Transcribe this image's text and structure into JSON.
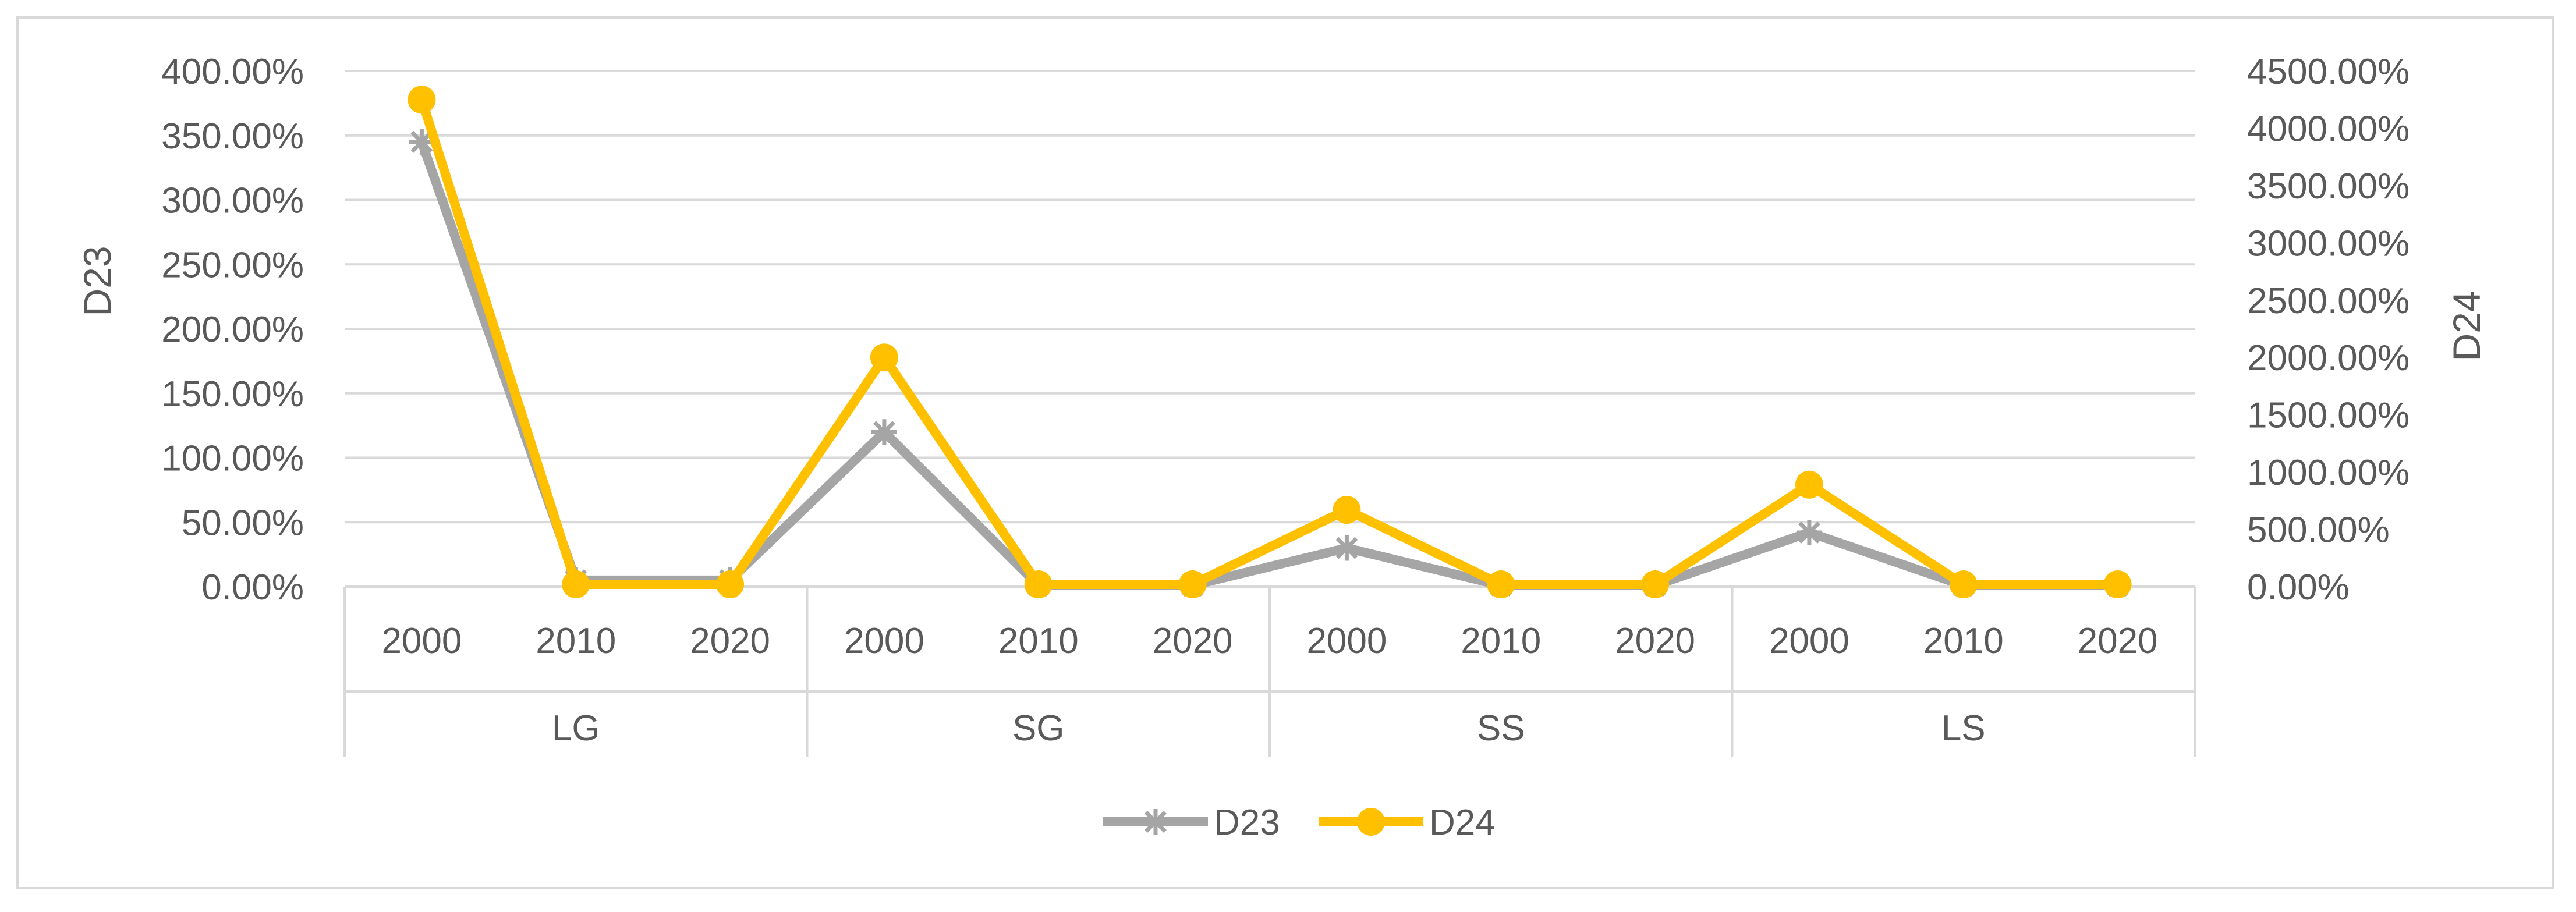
{
  "chart_data": {
    "type": "line",
    "title": "",
    "groups": [
      {
        "label": "LG",
        "years": [
          "2000",
          "2010",
          "2020"
        ]
      },
      {
        "label": "SG",
        "years": [
          "2000",
          "2010",
          "2020"
        ]
      },
      {
        "label": "SS",
        "years": [
          "2000",
          "2010",
          "2020"
        ]
      },
      {
        "label": "LS",
        "years": [
          "2000",
          "2010",
          "2020"
        ]
      }
    ],
    "y_left": {
      "label": "D23",
      "ylim": [
        0,
        400
      ],
      "ticks": [
        "0.00%",
        "50.00%",
        "100.00%",
        "150.00%",
        "200.00%",
        "250.00%",
        "300.00%",
        "350.00%",
        "400.00%"
      ]
    },
    "y_right": {
      "label": "D24",
      "ylim": [
        0,
        4500
      ],
      "ticks": [
        "0.00%",
        "500.00%",
        "1000.00%",
        "1500.00%",
        "2000.00%",
        "2500.00%",
        "3000.00%",
        "3500.00%",
        "4000.00%",
        "4500.00%"
      ]
    },
    "series": [
      {
        "name": "D23",
        "axis": "left",
        "color": "#a5a5a5",
        "marker": "star",
        "values": [
          345,
          5,
          5,
          120,
          1,
          1,
          30,
          1,
          1,
          42,
          1,
          1
        ]
      },
      {
        "name": "D24",
        "axis": "right",
        "color": "#ffc000",
        "marker": "circle",
        "values": [
          4250,
          20,
          20,
          2000,
          20,
          20,
          670,
          20,
          20,
          890,
          20,
          20
        ]
      }
    ],
    "grid": true,
    "legend": "bottom"
  }
}
